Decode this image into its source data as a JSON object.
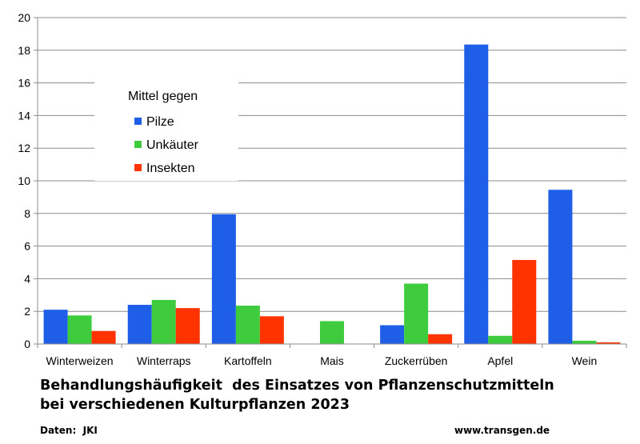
{
  "chart_data": {
    "type": "bar",
    "categories": [
      "Winterweizen",
      "Winterraps",
      "Kartoffeln",
      "Mais",
      "Zuckerrüben",
      "Apfel",
      "Wein"
    ],
    "series": [
      {
        "name": "Pilze",
        "color": "#1f5fe8",
        "values": [
          2.1,
          2.4,
          7.95,
          0,
          1.15,
          18.35,
          9.45
        ]
      },
      {
        "name": "Unkäuter",
        "color": "#3ecc3e",
        "values": [
          1.75,
          2.7,
          2.35,
          1.4,
          3.7,
          0.5,
          0.2
        ]
      },
      {
        "name": "Insekten",
        "color": "#ff3300",
        "values": [
          0.8,
          2.2,
          1.7,
          0,
          0.6,
          5.15,
          0.1
        ]
      }
    ],
    "ylim": [
      0,
      20
    ],
    "yticks": [
      0,
      2,
      4,
      6,
      8,
      10,
      12,
      14,
      16,
      18,
      20
    ],
    "grid": true,
    "legend": {
      "title": "Mittel gegen",
      "placement": "top-left"
    },
    "title_lines": [
      "Behandlungshäufigkeit  des Einsatzes von Pflanzenschutzmitteln",
      "bei verschiedenen Kulturpflanzen 2023"
    ]
  },
  "footer": {
    "source": "Daten:  JKI",
    "website": "www.transgen.de"
  }
}
